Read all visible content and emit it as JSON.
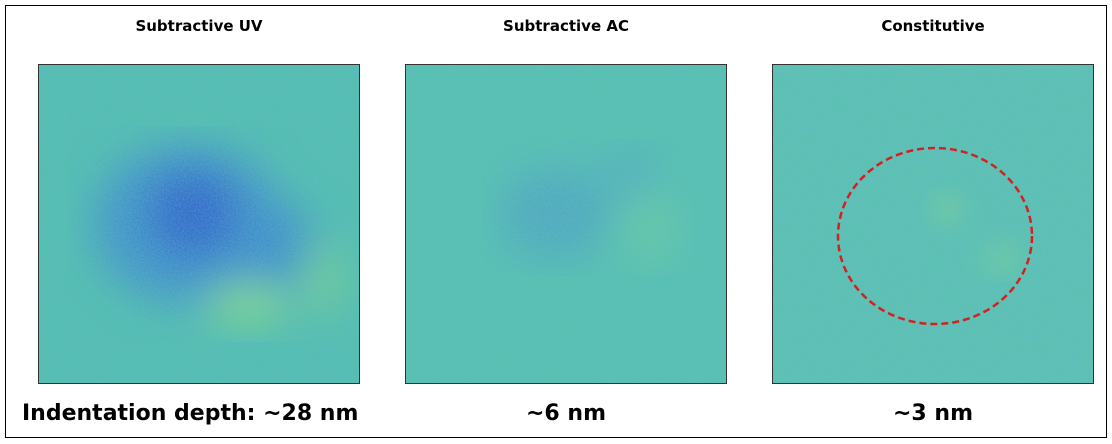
{
  "panels": [
    {
      "title": "Subtractive UV",
      "caption": "Indentation depth: ~28 nm"
    },
    {
      "title": "Subtractive AC",
      "caption": "~6 nm"
    },
    {
      "title": "Constitutive",
      "caption": "~3 nm"
    }
  ]
}
